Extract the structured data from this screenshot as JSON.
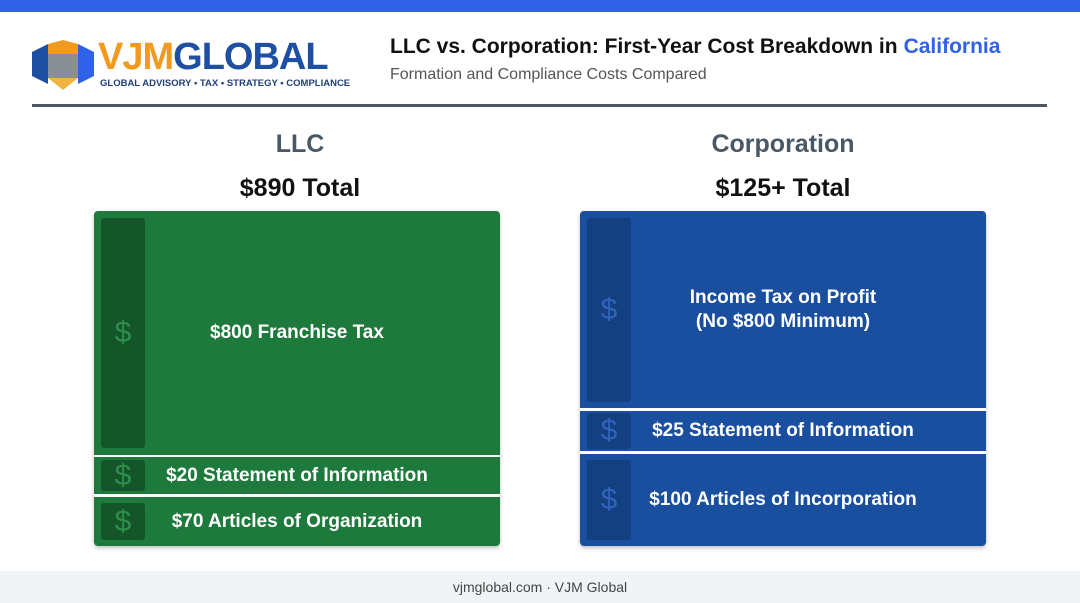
{
  "header": {
    "logo": {
      "name_part1": "VJM",
      "name_part2": "GLOBAL",
      "tagline": "GLOBAL ADVISORY • TAX • STRATEGY • COMPLIANCE"
    },
    "title_lead": "LLC vs. Corporation: First-Year Cost Breakdown in",
    "title_highlight": "California",
    "subtitle": "Formation and Compliance Costs Compared"
  },
  "columns": [
    {
      "heading": "LLC",
      "total": "$890 Total",
      "blocks": [
        {
          "icon": "$",
          "lines": [
            "$800 Franchise Tax"
          ]
        },
        {
          "icon": "$",
          "lines": [
            "$20 Statement of Information"
          ]
        },
        {
          "icon": "$",
          "lines": [
            "$70 Articles of Organization"
          ]
        }
      ]
    },
    {
      "heading": "Corporation",
      "total": "$125+ Total",
      "blocks": [
        {
          "icon": "$",
          "lines": [
            "Income Tax on Profit",
            "(No $800 Minimum)"
          ]
        },
        {
          "icon": "$",
          "lines": [
            "$25 Statement of Information"
          ]
        },
        {
          "icon": "$",
          "lines": [
            "$100 Articles of Incorporation"
          ]
        }
      ]
    }
  ],
  "footer": "vjmglobal.com · VJM Global"
}
